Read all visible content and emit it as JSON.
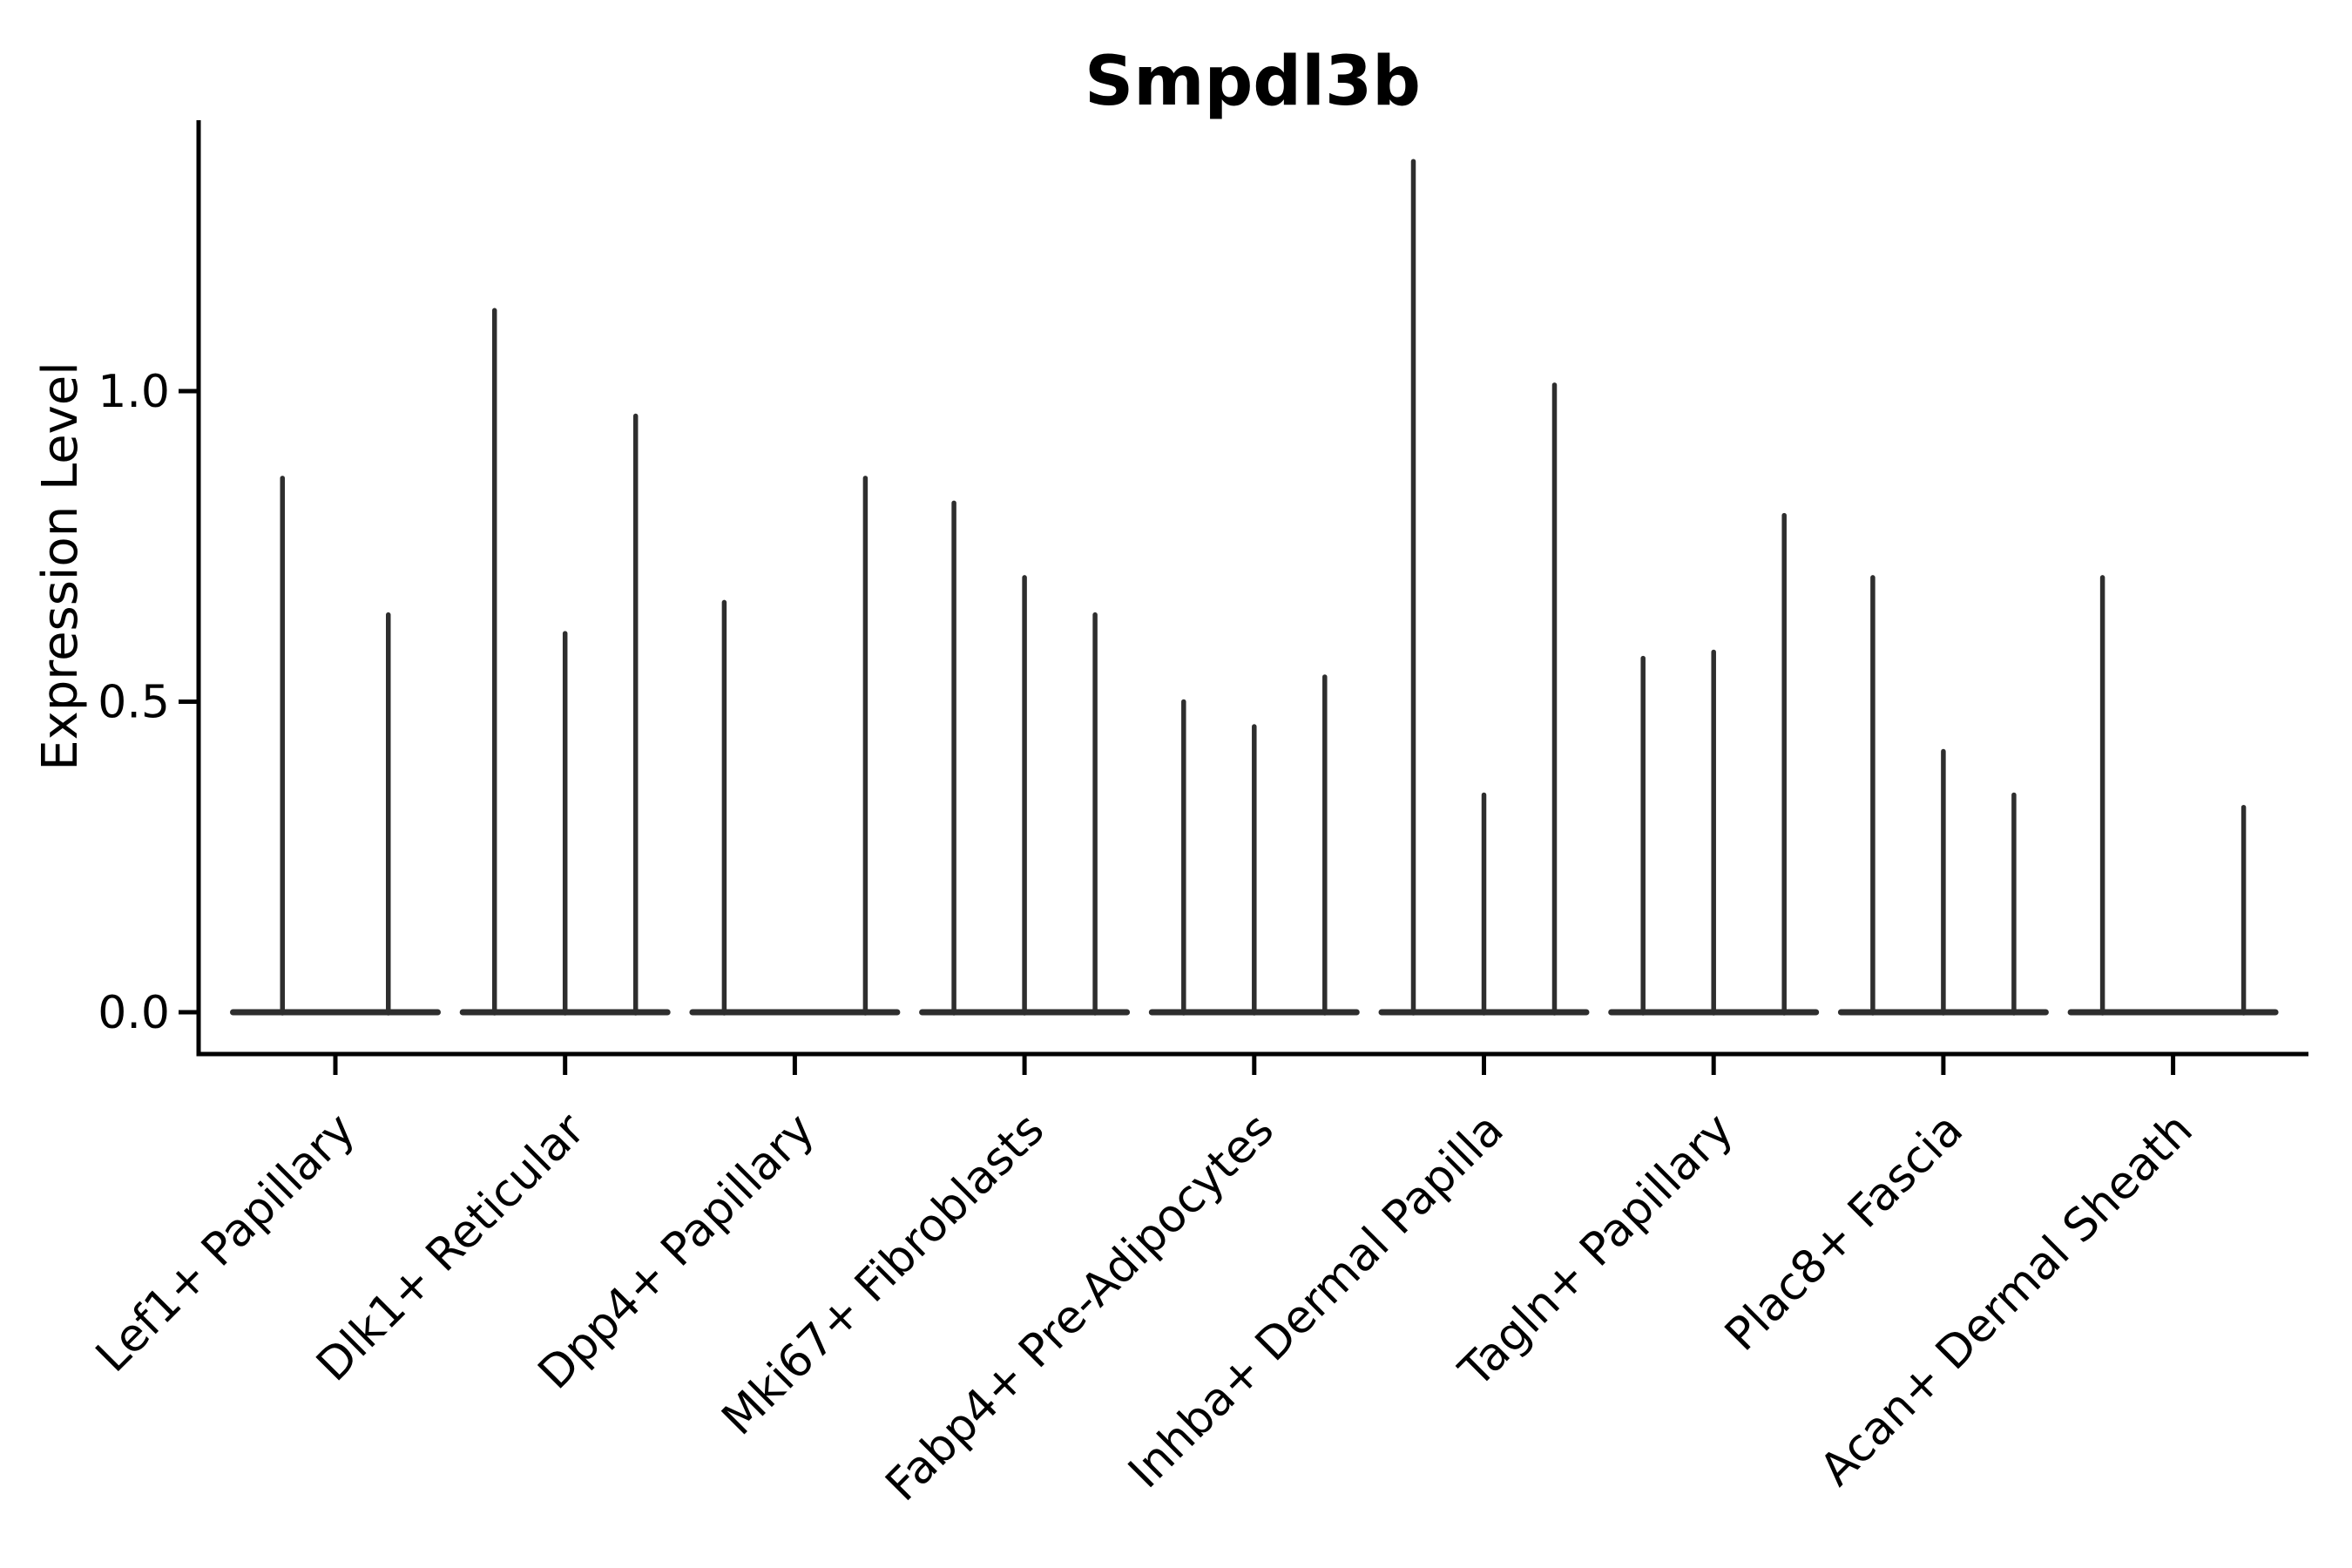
{
  "figure": {
    "background": "#ffffff"
  },
  "chart_data": {
    "type": "violin",
    "title": "Smpdl3b",
    "ylabel": "Expression Level",
    "xlabel": "",
    "grid": false,
    "legend": null,
    "ylim": [
      -0.07,
      1.44
    ],
    "yticks": [
      {
        "value": 0.0,
        "label": "0.0"
      },
      {
        "value": 0.5,
        "label": "0.5"
      },
      {
        "value": 1.0,
        "label": "1.0"
      }
    ],
    "axis_color": "#000000",
    "violin_color": "#2e2e2e",
    "categories": [
      {
        "label": "Lef1+ Papillary",
        "violin_max_values": [
          0.86,
          0.64
        ]
      },
      {
        "label": "Dlk1+ Reticular",
        "violin_max_values": [
          1.13,
          0.61,
          0.96
        ]
      },
      {
        "label": "Dpp4+ Papillary",
        "violin_max_values": [
          0.66,
          0.0,
          0.86
        ]
      },
      {
        "label": "Mki67+ Fibroblasts",
        "violin_max_values": [
          0.82,
          0.7,
          0.64
        ]
      },
      {
        "label": "Fabp4+ Pre-Adipocytes",
        "violin_max_values": [
          0.5,
          0.46,
          0.54
        ]
      },
      {
        "label": "Inhba+ Dermal Papilla",
        "violin_max_values": [
          1.37,
          0.35,
          1.01
        ]
      },
      {
        "label": "Tagln+ Papillary",
        "violin_max_values": [
          0.57,
          0.58,
          0.8
        ]
      },
      {
        "label": "Plac8+ Fascia",
        "violin_max_values": [
          0.7,
          0.42,
          0.35
        ]
      },
      {
        "label": "Acan+ Dermal Sheath",
        "violin_max_values": [
          0.7,
          0.0,
          0.33
        ]
      }
    ]
  }
}
